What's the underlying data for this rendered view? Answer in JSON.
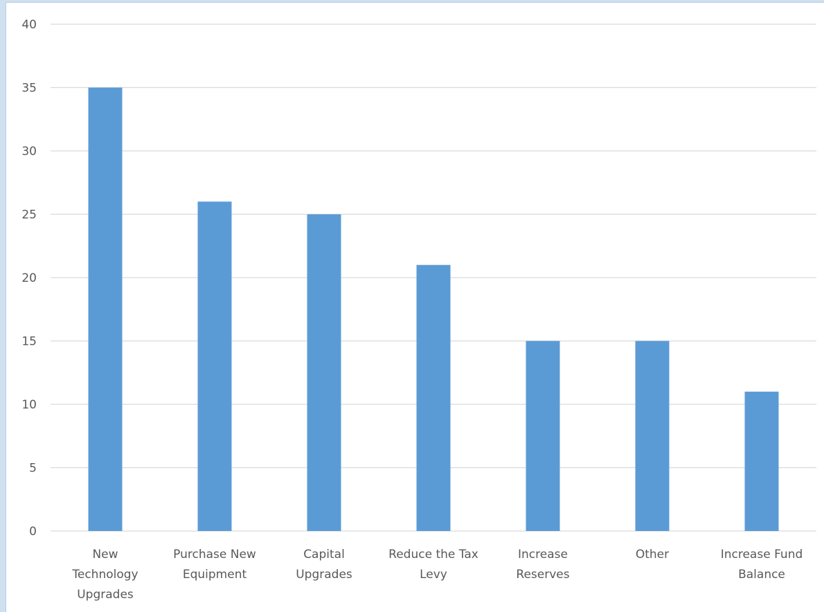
{
  "chart_data": {
    "type": "bar",
    "categories": [
      [
        "New",
        "Technology",
        "Upgrades"
      ],
      [
        "Purchase New",
        "Equipment"
      ],
      [
        "Capital",
        "Upgrades"
      ],
      [
        "Reduce the Tax",
        "Levy"
      ],
      [
        "Increase",
        "Reserves"
      ],
      [
        "Other"
      ],
      [
        "Increase Fund",
        "Balance"
      ]
    ],
    "values": [
      35,
      26,
      25,
      21,
      15,
      15,
      11
    ],
    "ylim": [
      0,
      40
    ],
    "yticks": [
      0,
      5,
      10,
      15,
      20,
      25,
      30,
      35,
      40
    ],
    "grid": true,
    "legend": "none",
    "colors": {
      "bar": "#5b9bd5",
      "grid": "#d9d9d9",
      "text": "#595959",
      "background": "#ffffff"
    }
  }
}
